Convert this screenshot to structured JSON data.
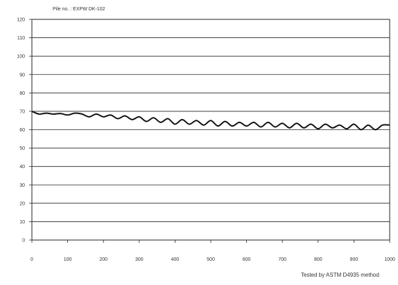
{
  "chart_data": {
    "type": "line",
    "subtitle": "Pile no. : EXPW DK-102",
    "footer_note": "Tested by ASTM D4935 method",
    "xlim": [
      0,
      1000
    ],
    "ylim": [
      0,
      120
    ],
    "x_ticks": [
      0,
      100,
      200,
      300,
      400,
      500,
      600,
      700,
      800,
      900,
      1000
    ],
    "y_ticks": [
      0,
      10,
      20,
      30,
      40,
      50,
      60,
      70,
      80,
      90,
      100,
      110,
      120
    ],
    "grid": true,
    "legend": "none",
    "line_color": "#111111",
    "series": [
      {
        "x": [
          0,
          20,
          40,
          60,
          80,
          100,
          120,
          140,
          160,
          180,
          200,
          220,
          240,
          260,
          280,
          300,
          320,
          340,
          360,
          380,
          400,
          420,
          440,
          460,
          480,
          500,
          520,
          540,
          560,
          580,
          600,
          620,
          640,
          660,
          680,
          700,
          720,
          740,
          760,
          780,
          800,
          820,
          840,
          860,
          880,
          900,
          920,
          940,
          960,
          980,
          1000
        ],
        "values": [
          70,
          68.5,
          69,
          68.5,
          68.8,
          68,
          69,
          68.5,
          67,
          68.5,
          67,
          68,
          66,
          67.5,
          65.5,
          67,
          64.5,
          66.5,
          64,
          66,
          63,
          65.5,
          63,
          65,
          62.5,
          65,
          62,
          64.5,
          62,
          64,
          62,
          64,
          61.5,
          64,
          61.5,
          63.5,
          61,
          63.5,
          61,
          63,
          60.5,
          63,
          61,
          62.5,
          60.5,
          63,
          60,
          62.5,
          60,
          62.5,
          62.5
        ]
      }
    ]
  }
}
